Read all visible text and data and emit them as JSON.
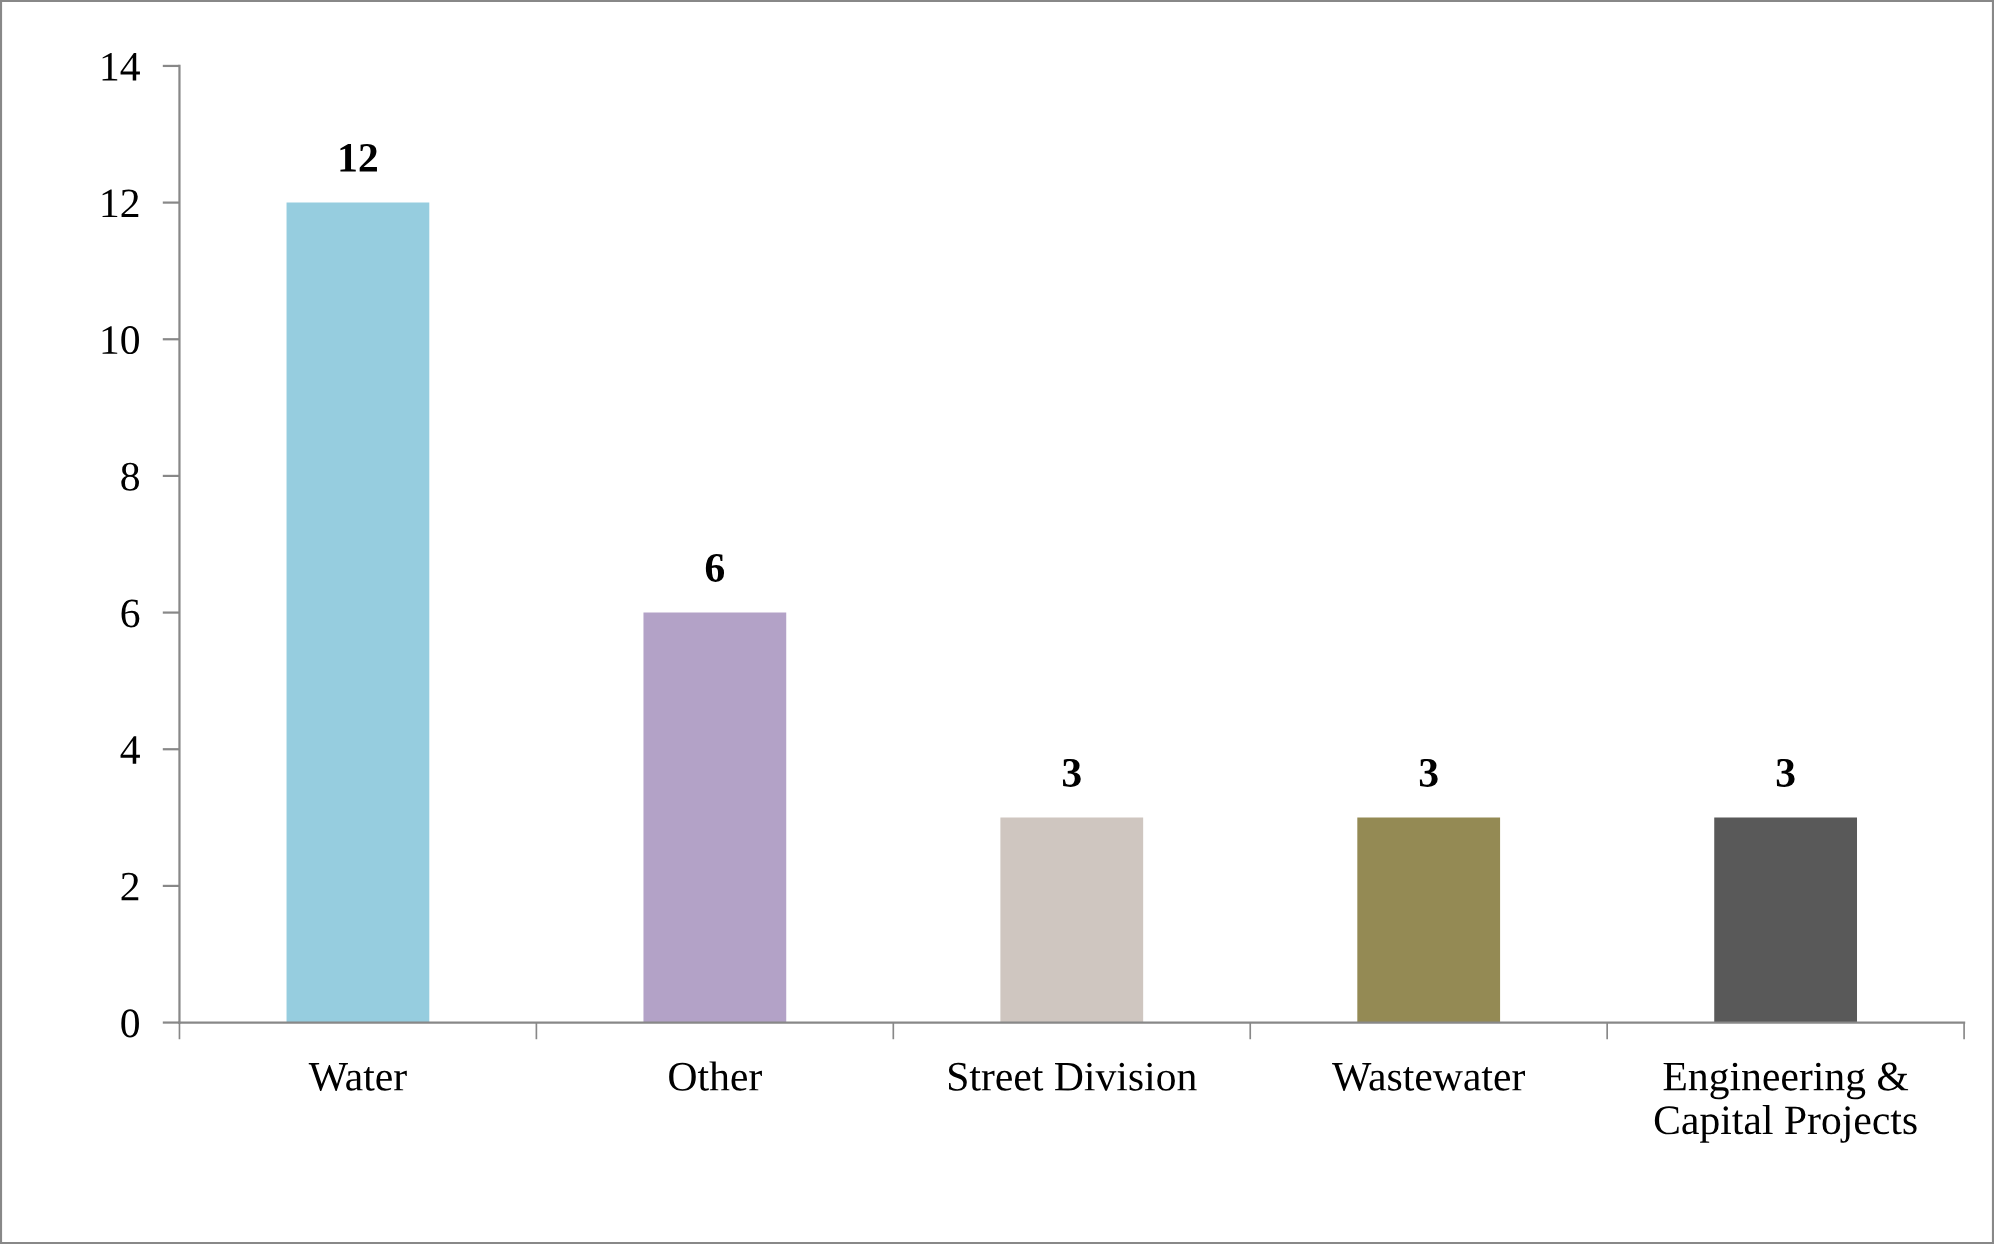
{
  "chart_data": {
    "type": "bar",
    "categories": [
      "Water",
      "Other",
      "Street Division",
      "Wastewater",
      "Engineering &\nCapital Projects"
    ],
    "values": [
      12,
      6,
      3,
      3,
      3
    ],
    "colors": [
      "#96cddf",
      "#b3a2c7",
      "#cfc6c0",
      "#948a54",
      "#595959"
    ],
    "ylim": [
      0,
      14
    ],
    "yticks": [
      0,
      2,
      4,
      6,
      8,
      10,
      12,
      14
    ],
    "grid": false,
    "data_labels": true
  }
}
